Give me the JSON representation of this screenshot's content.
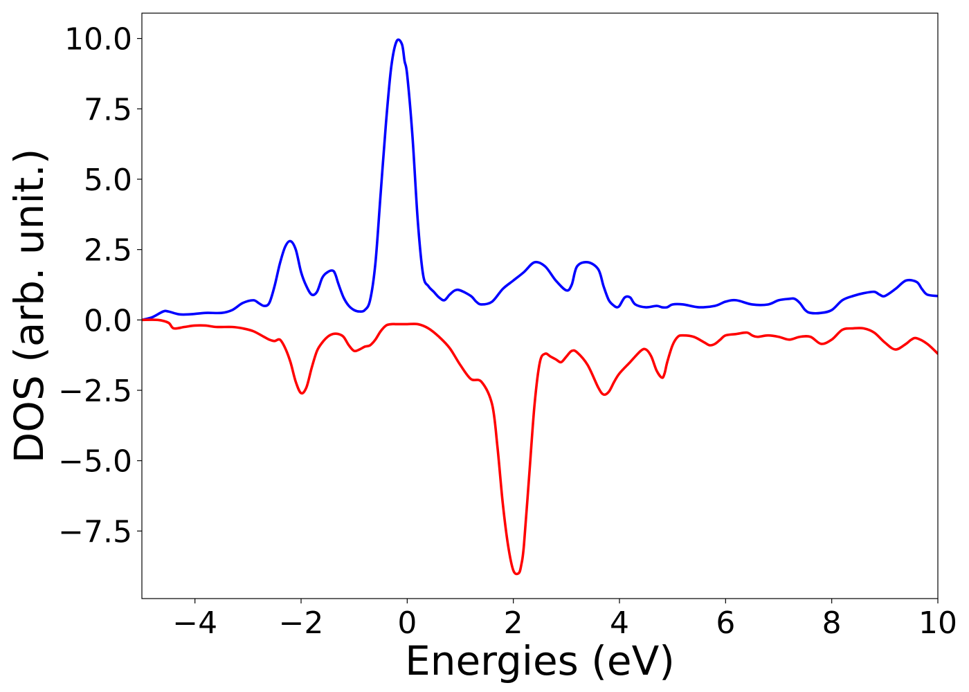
{
  "chart_data": {
    "type": "line",
    "title": "",
    "xlabel": "Energies (eV)",
    "ylabel": "DOS (arb. unit.)",
    "xlim": [
      -5,
      10
    ],
    "ylim": [
      -9.9,
      10.9
    ],
    "xticks": [
      -4,
      -2,
      0,
      2,
      4,
      6,
      8,
      10
    ],
    "xtick_labels": [
      "−4",
      "−2",
      "0",
      "2",
      "4",
      "6",
      "8",
      "10"
    ],
    "yticks": [
      -7.5,
      -5.0,
      -2.5,
      0.0,
      2.5,
      5.0,
      7.5,
      10.0
    ],
    "ytick_labels": [
      "−7.5",
      "−5.0",
      "−2.5",
      "0.0",
      "2.5",
      "5.0",
      "7.5",
      "10.0"
    ],
    "grid": false,
    "legend": "none",
    "series": [
      {
        "color": "#0000ff",
        "x": [
          -5.0,
          -4.8,
          -4.6,
          -4.5,
          -4.3,
          -4.1,
          -3.8,
          -3.5,
          -3.3,
          -3.1,
          -2.9,
          -2.8,
          -2.7,
          -2.6,
          -2.5,
          -2.4,
          -2.3,
          -2.2,
          -2.1,
          -2.0,
          -1.9,
          -1.8,
          -1.7,
          -1.6,
          -1.5,
          -1.4,
          -1.35,
          -1.3,
          -1.2,
          -1.1,
          -1.0,
          -0.9,
          -0.8,
          -0.7,
          -0.6,
          -0.5,
          -0.4,
          -0.3,
          -0.2,
          -0.1,
          -0.05,
          0.0,
          0.1,
          0.2,
          0.3,
          0.4,
          0.5,
          0.6,
          0.7,
          0.8,
          0.9,
          1.0,
          1.2,
          1.3,
          1.4,
          1.6,
          1.8,
          2.0,
          2.2,
          2.4,
          2.6,
          2.8,
          3.0,
          3.1,
          3.2,
          3.4,
          3.6,
          3.7,
          3.8,
          3.9,
          3.95,
          4.0,
          4.1,
          4.2,
          4.3,
          4.5,
          4.7,
          4.8,
          4.9,
          5.0,
          5.2,
          5.5,
          5.8,
          6.0,
          6.2,
          6.5,
          6.8,
          7.0,
          7.2,
          7.3,
          7.4,
          7.5,
          7.6,
          7.8,
          8.0,
          8.2,
          8.4,
          8.6,
          8.8,
          8.9,
          9.0,
          9.2,
          9.4,
          9.6,
          9.7,
          9.8,
          10.0
        ],
        "y": [
          0.0,
          0.1,
          0.3,
          0.3,
          0.2,
          0.2,
          0.25,
          0.25,
          0.35,
          0.6,
          0.7,
          0.6,
          0.5,
          0.6,
          1.2,
          2.0,
          2.6,
          2.8,
          2.5,
          1.7,
          1.2,
          0.9,
          1.0,
          1.5,
          1.7,
          1.75,
          1.6,
          1.3,
          0.8,
          0.5,
          0.35,
          0.3,
          0.35,
          0.7,
          2.0,
          4.5,
          7.0,
          9.0,
          9.9,
          9.8,
          9.2,
          8.7,
          6.5,
          3.5,
          1.6,
          1.2,
          1.0,
          0.8,
          0.7,
          0.9,
          1.05,
          1.05,
          0.85,
          0.65,
          0.55,
          0.65,
          1.1,
          1.4,
          1.7,
          2.05,
          1.9,
          1.4,
          1.05,
          1.25,
          1.9,
          2.05,
          1.8,
          1.2,
          0.7,
          0.5,
          0.45,
          0.5,
          0.8,
          0.8,
          0.55,
          0.45,
          0.5,
          0.45,
          0.45,
          0.55,
          0.55,
          0.45,
          0.5,
          0.65,
          0.7,
          0.55,
          0.55,
          0.7,
          0.75,
          0.75,
          0.6,
          0.35,
          0.25,
          0.25,
          0.35,
          0.7,
          0.85,
          0.95,
          1.0,
          0.9,
          0.85,
          1.1,
          1.4,
          1.35,
          1.1,
          0.9,
          0.85
        ]
      },
      {
        "color": "#ff0000",
        "x": [
          -5.0,
          -4.7,
          -4.5,
          -4.4,
          -4.2,
          -4.0,
          -3.8,
          -3.6,
          -3.3,
          -3.1,
          -2.9,
          -2.7,
          -2.6,
          -2.5,
          -2.4,
          -2.3,
          -2.2,
          -2.1,
          -2.0,
          -1.9,
          -1.8,
          -1.7,
          -1.6,
          -1.5,
          -1.4,
          -1.3,
          -1.2,
          -1.1,
          -1.0,
          -0.9,
          -0.8,
          -0.7,
          -0.6,
          -0.5,
          -0.4,
          -0.3,
          -0.2,
          0.0,
          0.2,
          0.4,
          0.6,
          0.8,
          1.0,
          1.2,
          1.4,
          1.6,
          1.7,
          1.8,
          1.9,
          2.0,
          2.1,
          2.15,
          2.2,
          2.3,
          2.4,
          2.5,
          2.6,
          2.7,
          2.8,
          2.9,
          3.0,
          3.1,
          3.2,
          3.4,
          3.6,
          3.7,
          3.8,
          3.9,
          4.0,
          4.2,
          4.4,
          4.5,
          4.6,
          4.7,
          4.8,
          4.85,
          4.9,
          5.0,
          5.1,
          5.2,
          5.4,
          5.6,
          5.7,
          5.8,
          5.9,
          6.0,
          6.2,
          6.4,
          6.5,
          6.6,
          6.8,
          7.0,
          7.2,
          7.4,
          7.6,
          7.8,
          8.0,
          8.2,
          8.4,
          8.6,
          8.8,
          9.0,
          9.2,
          9.4,
          9.5,
          9.6,
          9.8,
          10.0
        ],
        "y": [
          0.0,
          0.0,
          -0.1,
          -0.3,
          -0.25,
          -0.2,
          -0.2,
          -0.25,
          -0.25,
          -0.3,
          -0.4,
          -0.6,
          -0.7,
          -0.75,
          -0.7,
          -1.0,
          -1.5,
          -2.2,
          -2.6,
          -2.4,
          -1.7,
          -1.1,
          -0.8,
          -0.6,
          -0.5,
          -0.5,
          -0.6,
          -0.9,
          -1.1,
          -1.05,
          -0.95,
          -0.9,
          -0.7,
          -0.4,
          -0.2,
          -0.15,
          -0.15,
          -0.15,
          -0.15,
          -0.3,
          -0.6,
          -1.0,
          -1.6,
          -2.1,
          -2.2,
          -3.0,
          -4.5,
          -6.5,
          -8.0,
          -8.9,
          -9.0,
          -8.7,
          -8.0,
          -5.5,
          -3.0,
          -1.5,
          -1.2,
          -1.3,
          -1.4,
          -1.5,
          -1.3,
          -1.1,
          -1.15,
          -1.6,
          -2.4,
          -2.65,
          -2.55,
          -2.2,
          -1.9,
          -1.5,
          -1.1,
          -1.05,
          -1.3,
          -1.8,
          -2.05,
          -1.9,
          -1.5,
          -0.9,
          -0.6,
          -0.55,
          -0.6,
          -0.8,
          -0.9,
          -0.85,
          -0.7,
          -0.55,
          -0.5,
          -0.45,
          -0.55,
          -0.6,
          -0.55,
          -0.6,
          -0.7,
          -0.6,
          -0.6,
          -0.85,
          -0.7,
          -0.35,
          -0.3,
          -0.3,
          -0.45,
          -0.8,
          -1.05,
          -0.85,
          -0.7,
          -0.65,
          -0.85,
          -1.2
        ]
      }
    ]
  }
}
